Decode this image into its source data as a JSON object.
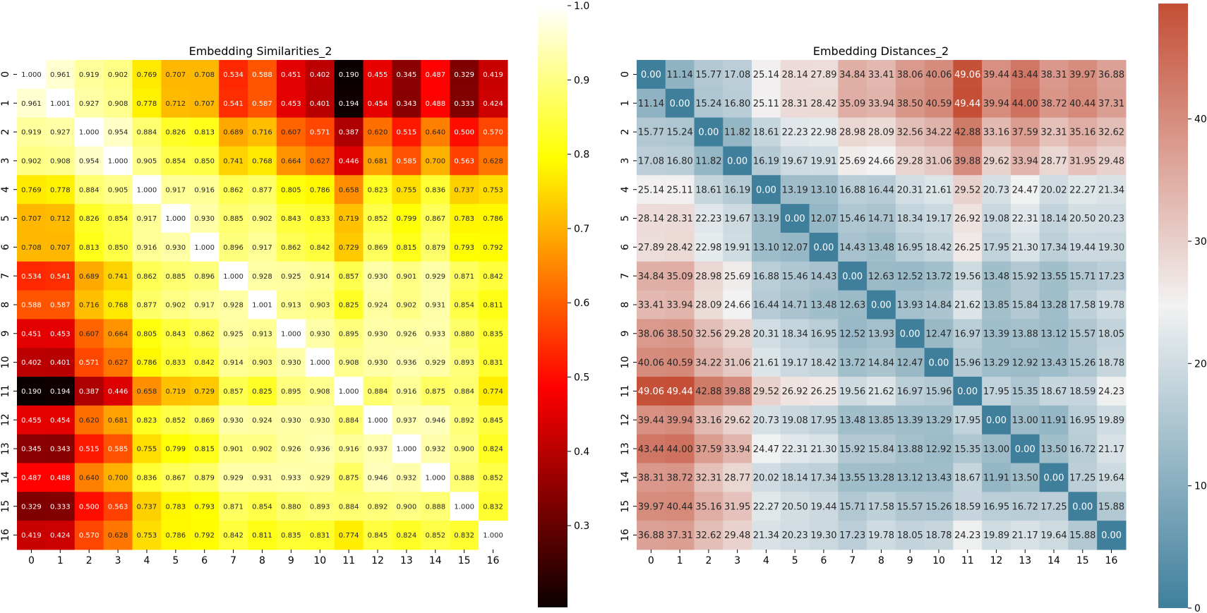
{
  "chart_data": [
    {
      "type": "heatmap",
      "title": "Embedding Similarities_2",
      "xlabel": "",
      "ylabel": "",
      "row_labels": [
        "0",
        "1",
        "2",
        "3",
        "4",
        "5",
        "6",
        "7",
        "8",
        "9",
        "10",
        "11",
        "12",
        "13",
        "14",
        "15",
        "16"
      ],
      "col_labels": [
        "0",
        "1",
        "2",
        "3",
        "4",
        "5",
        "6",
        "7",
        "8",
        "9",
        "10",
        "11",
        "12",
        "13",
        "14",
        "15",
        "16"
      ],
      "colormap": "hot",
      "vmin": 0.19,
      "vmax": 1.0,
      "colorbar_ticks": [
        "0.3",
        "0.4",
        "0.5",
        "0.6",
        "0.7",
        "0.8",
        "0.9",
        "1.0"
      ],
      "colorbar_tick_values": [
        0.3,
        0.4,
        0.5,
        0.6,
        0.7,
        0.8,
        0.9,
        1.0
      ],
      "values": [
        [
          "1.000",
          "0.961",
          "0.919",
          "0.902",
          "0.769",
          "0.707",
          "0.708",
          "0.534",
          "0.588",
          "0.451",
          "0.402",
          "0.190",
          "0.455",
          "0.345",
          "0.487",
          "0.329",
          "0.419"
        ],
        [
          "0.961",
          "1.001",
          "0.927",
          "0.908",
          "0.778",
          "0.712",
          "0.707",
          "0.541",
          "0.587",
          "0.453",
          "0.401",
          "0.194",
          "0.454",
          "0.343",
          "0.488",
          "0.333",
          "0.424"
        ],
        [
          "0.919",
          "0.927",
          "1.000",
          "0.954",
          "0.884",
          "0.826",
          "0.813",
          "0.689",
          "0.716",
          "0.607",
          "0.571",
          "0.387",
          "0.620",
          "0.515",
          "0.640",
          "0.500",
          "0.570"
        ],
        [
          "0.902",
          "0.908",
          "0.954",
          "1.000",
          "0.905",
          "0.854",
          "0.850",
          "0.741",
          "0.768",
          "0.664",
          "0.627",
          "0.446",
          "0.681",
          "0.585",
          "0.700",
          "0.563",
          "0.628"
        ],
        [
          "0.769",
          "0.778",
          "0.884",
          "0.905",
          "1.000",
          "0.917",
          "0.916",
          "0.862",
          "0.877",
          "0.805",
          "0.786",
          "0.658",
          "0.823",
          "0.755",
          "0.836",
          "0.737",
          "0.753"
        ],
        [
          "0.707",
          "0.712",
          "0.826",
          "0.854",
          "0.917",
          "1.000",
          "0.930",
          "0.885",
          "0.902",
          "0.843",
          "0.833",
          "0.719",
          "0.852",
          "0.799",
          "0.867",
          "0.783",
          "0.786"
        ],
        [
          "0.708",
          "0.707",
          "0.813",
          "0.850",
          "0.916",
          "0.930",
          "1.000",
          "0.896",
          "0.917",
          "0.862",
          "0.842",
          "0.729",
          "0.869",
          "0.815",
          "0.879",
          "0.793",
          "0.792"
        ],
        [
          "0.534",
          "0.541",
          "0.689",
          "0.741",
          "0.862",
          "0.885",
          "0.896",
          "1.000",
          "0.928",
          "0.925",
          "0.914",
          "0.857",
          "0.930",
          "0.901",
          "0.929",
          "0.871",
          "0.842"
        ],
        [
          "0.588",
          "0.587",
          "0.716",
          "0.768",
          "0.877",
          "0.902",
          "0.917",
          "0.928",
          "1.001",
          "0.913",
          "0.903",
          "0.825",
          "0.924",
          "0.902",
          "0.931",
          "0.854",
          "0.811"
        ],
        [
          "0.451",
          "0.453",
          "0.607",
          "0.664",
          "0.805",
          "0.843",
          "0.862",
          "0.925",
          "0.913",
          "1.000",
          "0.930",
          "0.895",
          "0.930",
          "0.926",
          "0.933",
          "0.880",
          "0.835"
        ],
        [
          "0.402",
          "0.401",
          "0.571",
          "0.627",
          "0.786",
          "0.833",
          "0.842",
          "0.914",
          "0.903",
          "0.930",
          "1.000",
          "0.908",
          "0.930",
          "0.936",
          "0.929",
          "0.893",
          "0.831"
        ],
        [
          "0.190",
          "0.194",
          "0.387",
          "0.446",
          "0.658",
          "0.719",
          "0.729",
          "0.857",
          "0.825",
          "0.895",
          "0.908",
          "1.000",
          "0.884",
          "0.916",
          "0.875",
          "0.884",
          "0.774"
        ],
        [
          "0.455",
          "0.454",
          "0.620",
          "0.681",
          "0.823",
          "0.852",
          "0.869",
          "0.930",
          "0.924",
          "0.930",
          "0.930",
          "0.884",
          "1.000",
          "0.937",
          "0.946",
          "0.892",
          "0.845"
        ],
        [
          "0.345",
          "0.343",
          "0.515",
          "0.585",
          "0.755",
          "0.799",
          "0.815",
          "0.901",
          "0.902",
          "0.926",
          "0.936",
          "0.916",
          "0.937",
          "1.000",
          "0.932",
          "0.900",
          "0.824"
        ],
        [
          "0.487",
          "0.488",
          "0.640",
          "0.700",
          "0.836",
          "0.867",
          "0.879",
          "0.929",
          "0.931",
          "0.933",
          "0.929",
          "0.875",
          "0.946",
          "0.932",
          "1.000",
          "0.888",
          "0.852"
        ],
        [
          "0.329",
          "0.333",
          "0.500",
          "0.563",
          "0.737",
          "0.783",
          "0.793",
          "0.871",
          "0.854",
          "0.880",
          "0.893",
          "0.884",
          "0.892",
          "0.900",
          "0.888",
          "1.000",
          "0.832"
        ],
        [
          "0.419",
          "0.424",
          "0.570",
          "0.628",
          "0.753",
          "0.786",
          "0.792",
          "0.842",
          "0.811",
          "0.835",
          "0.831",
          "0.774",
          "0.845",
          "0.824",
          "0.852",
          "0.832",
          "1.000"
        ]
      ]
    },
    {
      "type": "heatmap",
      "title": "Embedding Distances_2",
      "xlabel": "",
      "ylabel": "",
      "row_labels": [
        "0",
        "1",
        "2",
        "3",
        "4",
        "5",
        "6",
        "7",
        "8",
        "9",
        "10",
        "11",
        "12",
        "13",
        "14",
        "15",
        "16"
      ],
      "col_labels": [
        "0",
        "1",
        "2",
        "3",
        "4",
        "5",
        "6",
        "7",
        "8",
        "9",
        "10",
        "11",
        "12",
        "13",
        "14",
        "15",
        "16"
      ],
      "colormap": "diverging-blue-red",
      "vmin": 0,
      "vmax": 49.44,
      "colorbar_ticks": [
        "0",
        "10",
        "20",
        "30",
        "40"
      ],
      "colorbar_tick_values": [
        0,
        10,
        20,
        30,
        40
      ],
      "values": [
        [
          "0.00",
          "11.14",
          "15.77",
          "17.08",
          "25.14",
          "28.14",
          "27.89",
          "34.84",
          "33.41",
          "38.06",
          "40.06",
          "49.06",
          "39.44",
          "43.44",
          "38.31",
          "39.97",
          "36.88"
        ],
        [
          "11.14",
          "0.00",
          "15.24",
          "16.80",
          "25.11",
          "28.31",
          "28.42",
          "35.09",
          "33.94",
          "38.50",
          "40.59",
          "49.44",
          "39.94",
          "44.00",
          "38.72",
          "40.44",
          "37.31"
        ],
        [
          "15.77",
          "15.24",
          "0.00",
          "11.82",
          "18.61",
          "22.23",
          "22.98",
          "28.98",
          "28.09",
          "32.56",
          "34.22",
          "42.88",
          "33.16",
          "37.59",
          "32.31",
          "35.16",
          "32.62"
        ],
        [
          "17.08",
          "16.80",
          "11.82",
          "0.00",
          "16.19",
          "19.67",
          "19.91",
          "25.69",
          "24.66",
          "29.28",
          "31.06",
          "39.88",
          "29.62",
          "33.94",
          "28.77",
          "31.95",
          "29.48"
        ],
        [
          "25.14",
          "25.11",
          "18.61",
          "16.19",
          "0.00",
          "13.19",
          "13.10",
          "16.88",
          "16.44",
          "20.31",
          "21.61",
          "29.52",
          "20.73",
          "24.47",
          "20.02",
          "22.27",
          "21.34"
        ],
        [
          "28.14",
          "28.31",
          "22.23",
          "19.67",
          "13.19",
          "0.00",
          "12.07",
          "15.46",
          "14.71",
          "18.34",
          "19.17",
          "26.92",
          "19.08",
          "22.31",
          "18.14",
          "20.50",
          "20.23"
        ],
        [
          "27.89",
          "28.42",
          "22.98",
          "19.91",
          "13.10",
          "12.07",
          "0.00",
          "14.43",
          "13.48",
          "16.95",
          "18.42",
          "26.25",
          "17.95",
          "21.30",
          "17.34",
          "19.44",
          "19.30"
        ],
        [
          "34.84",
          "35.09",
          "28.98",
          "25.69",
          "16.88",
          "15.46",
          "14.43",
          "0.00",
          "12.63",
          "12.52",
          "13.72",
          "19.56",
          "13.48",
          "15.92",
          "13.55",
          "15.71",
          "17.23"
        ],
        [
          "33.41",
          "33.94",
          "28.09",
          "24.66",
          "16.44",
          "14.71",
          "13.48",
          "12.63",
          "0.00",
          "13.93",
          "14.84",
          "21.62",
          "13.85",
          "15.84",
          "13.28",
          "17.58",
          "19.78"
        ],
        [
          "38.06",
          "38.50",
          "32.56",
          "29.28",
          "20.31",
          "18.34",
          "16.95",
          "12.52",
          "13.93",
          "0.00",
          "12.47",
          "16.97",
          "13.39",
          "13.88",
          "13.12",
          "15.57",
          "18.05"
        ],
        [
          "40.06",
          "40.59",
          "34.22",
          "31.06",
          "21.61",
          "19.17",
          "18.42",
          "13.72",
          "14.84",
          "12.47",
          "0.00",
          "15.96",
          "13.29",
          "12.92",
          "13.43",
          "15.26",
          "18.78"
        ],
        [
          "49.06",
          "49.44",
          "42.88",
          "39.88",
          "29.52",
          "26.92",
          "26.25",
          "19.56",
          "21.62",
          "16.97",
          "15.96",
          "0.00",
          "17.95",
          "15.35",
          "18.67",
          "18.59",
          "24.23"
        ],
        [
          "39.44",
          "39.94",
          "33.16",
          "29.62",
          "20.73",
          "19.08",
          "17.95",
          "13.48",
          "13.85",
          "13.39",
          "13.29",
          "17.95",
          "0.00",
          "13.00",
          "11.91",
          "16.95",
          "19.89"
        ],
        [
          "43.44",
          "44.00",
          "37.59",
          "33.94",
          "24.47",
          "22.31",
          "21.30",
          "15.92",
          "15.84",
          "13.88",
          "12.92",
          "15.35",
          "13.00",
          "0.00",
          "13.50",
          "16.72",
          "21.17"
        ],
        [
          "38.31",
          "38.72",
          "32.31",
          "28.77",
          "20.02",
          "18.14",
          "17.34",
          "13.55",
          "13.28",
          "13.12",
          "13.43",
          "18.67",
          "11.91",
          "13.50",
          "0.00",
          "17.25",
          "19.64"
        ],
        [
          "39.97",
          "40.44",
          "35.16",
          "31.95",
          "22.27",
          "20.50",
          "19.44",
          "15.71",
          "17.58",
          "15.57",
          "15.26",
          "18.59",
          "16.95",
          "16.72",
          "17.25",
          "0.00",
          "15.88"
        ],
        [
          "36.88",
          "37.31",
          "32.62",
          "29.48",
          "21.34",
          "20.23",
          "19.30",
          "17.23",
          "19.78",
          "18.05",
          "18.78",
          "24.23",
          "19.89",
          "21.17",
          "19.64",
          "15.88",
          "0.00"
        ]
      ]
    }
  ]
}
